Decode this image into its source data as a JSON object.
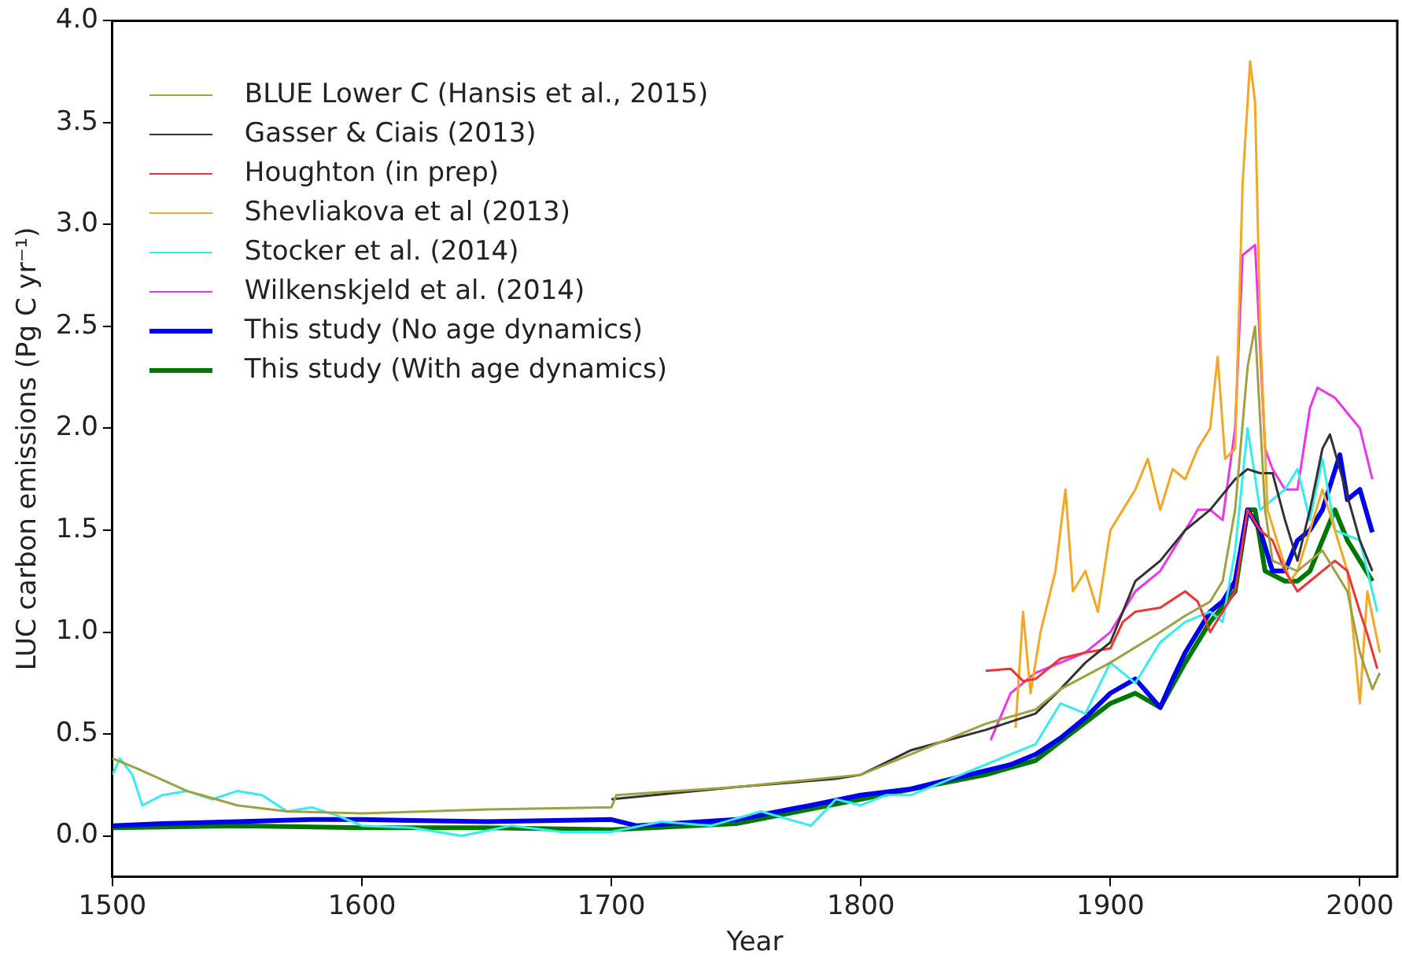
{
  "chart_data": {
    "type": "line",
    "xlabel": "Year",
    "ylabel": "LUC carbon emissions (Pg C yr⁻¹)",
    "xlim": [
      1500,
      2015
    ],
    "xticks": [
      1500,
      1600,
      1700,
      1800,
      1900,
      2000
    ],
    "ylim": [
      -0.2,
      4.0
    ],
    "yticks": [
      {
        "value": 0,
        "label": "0.0"
      },
      0.5,
      {
        "value": 1,
        "label": "1.0"
      },
      1.5,
      {
        "value": 2,
        "label": "2.0"
      },
      2.5,
      {
        "value": 3,
        "label": "3.0"
      },
      3.5,
      {
        "value": 4,
        "label": "4.0"
      }
    ],
    "grid": false,
    "legend": "top left",
    "marker": "none",
    "line_style": "solid",
    "series": [
      {
        "name": "BLUE Lower C (Hansis et al., 2015)",
        "color": "#a0a040",
        "x": [
          1500,
          1510,
          1530,
          1550,
          1570,
          1600,
          1650,
          1700,
          1702,
          1750,
          1800,
          1820,
          1850,
          1870,
          1880,
          1900,
          1920,
          1930,
          1940,
          1945,
          1950,
          1955,
          1958,
          1962,
          1965,
          1975,
          1985,
          1995,
          2000,
          2005,
          2008
        ],
        "values": [
          0.38,
          0.33,
          0.22,
          0.15,
          0.12,
          0.11,
          0.13,
          0.14,
          0.2,
          0.24,
          0.3,
          0.4,
          0.55,
          0.62,
          0.72,
          0.85,
          1.0,
          1.08,
          1.15,
          1.25,
          1.6,
          2.3,
          2.5,
          1.6,
          1.35,
          1.3,
          1.4,
          1.2,
          0.9,
          0.72,
          0.8
        ]
      },
      {
        "name": "Gasser & Ciais (2013)",
        "color": "#333333",
        "x": [
          1700,
          1750,
          1790,
          1800,
          1820,
          1850,
          1870,
          1880,
          1890,
          1900,
          1910,
          1920,
          1930,
          1940,
          1950,
          1955,
          1960,
          1965,
          1970,
          1975,
          1980,
          1985,
          1988,
          1992,
          2000,
          2005
        ],
        "values": [
          0.18,
          0.24,
          0.28,
          0.3,
          0.42,
          0.52,
          0.6,
          0.72,
          0.85,
          0.95,
          1.25,
          1.35,
          1.5,
          1.6,
          1.75,
          1.8,
          1.78,
          1.78,
          1.55,
          1.35,
          1.6,
          1.9,
          1.97,
          1.8,
          1.45,
          1.3
        ]
      },
      {
        "name": "Houghton (in prep)",
        "color": "#ee3333",
        "x": [
          1850,
          1860,
          1865,
          1870,
          1880,
          1890,
          1900,
          1905,
          1910,
          1920,
          1930,
          1935,
          1940,
          1950,
          1955,
          1960,
          1965,
          1970,
          1975,
          1980,
          1990,
          1995,
          2000,
          2003,
          2007
        ],
        "values": [
          0.81,
          0.82,
          0.76,
          0.77,
          0.87,
          0.9,
          0.92,
          1.05,
          1.1,
          1.12,
          1.2,
          1.15,
          1.0,
          1.2,
          1.6,
          1.5,
          1.45,
          1.3,
          1.2,
          1.25,
          1.35,
          1.3,
          1.1,
          0.99,
          0.82
        ]
      },
      {
        "name": "Shevliakova et al (2013)",
        "color": "#f5a623",
        "x": [
          1862,
          1865,
          1868,
          1872,
          1878,
          1882,
          1885,
          1890,
          1895,
          1900,
          1905,
          1910,
          1915,
          1920,
          1925,
          1930,
          1935,
          1940,
          1943,
          1946,
          1950,
          1953,
          1956,
          1958,
          1960,
          1963,
          1968,
          1972,
          1975,
          1980,
          1985,
          1990,
          1995,
          2000,
          2003,
          2008
        ],
        "values": [
          0.53,
          1.1,
          0.7,
          1.0,
          1.3,
          1.7,
          1.2,
          1.3,
          1.1,
          1.5,
          1.6,
          1.7,
          1.85,
          1.6,
          1.8,
          1.75,
          1.9,
          2.0,
          2.35,
          1.85,
          1.9,
          3.2,
          3.8,
          3.6,
          2.5,
          1.6,
          1.4,
          1.25,
          1.3,
          1.5,
          1.7,
          1.5,
          1.3,
          0.65,
          1.2,
          0.9
        ]
      },
      {
        "name": "Stocker et al. (2014)",
        "color": "#33eeee",
        "x": [
          1500,
          1503,
          1508,
          1512,
          1520,
          1530,
          1540,
          1550,
          1560,
          1570,
          1580,
          1590,
          1600,
          1620,
          1640,
          1660,
          1680,
          1700,
          1720,
          1740,
          1760,
          1780,
          1790,
          1800,
          1810,
          1820,
          1840,
          1860,
          1870,
          1880,
          1890,
          1900,
          1910,
          1920,
          1930,
          1940,
          1945,
          1950,
          1955,
          1960,
          1970,
          1975,
          1980,
          1985,
          1990,
          2000,
          2007
        ],
        "values": [
          0.3,
          0.38,
          0.3,
          0.15,
          0.2,
          0.22,
          0.18,
          0.22,
          0.2,
          0.12,
          0.14,
          0.1,
          0.05,
          0.04,
          0.0,
          0.05,
          0.02,
          0.02,
          0.07,
          0.05,
          0.12,
          0.05,
          0.18,
          0.15,
          0.2,
          0.2,
          0.3,
          0.4,
          0.45,
          0.65,
          0.6,
          0.85,
          0.75,
          0.95,
          1.05,
          1.1,
          1.05,
          1.4,
          2.0,
          1.6,
          1.7,
          1.8,
          1.55,
          1.85,
          1.5,
          1.45,
          1.1
        ]
      },
      {
        "name": "Wilkenskjeld et al. (2014)",
        "color": "#ee33ee",
        "x": [
          1852,
          1860,
          1870,
          1880,
          1890,
          1900,
          1910,
          1920,
          1930,
          1935,
          1940,
          1945,
          1950,
          1953,
          1958,
          1962,
          1965,
          1970,
          1975,
          1980,
          1983,
          1990,
          2000,
          2005
        ],
        "values": [
          0.47,
          0.7,
          0.8,
          0.85,
          0.9,
          1.0,
          1.2,
          1.3,
          1.5,
          1.6,
          1.6,
          1.55,
          2.0,
          2.85,
          2.9,
          1.9,
          1.8,
          1.7,
          1.7,
          2.1,
          2.2,
          2.15,
          2.0,
          1.75
        ]
      },
      {
        "name": "This study (No age dynamics)",
        "color": "#0000ee",
        "x": [
          1500,
          1520,
          1550,
          1580,
          1600,
          1650,
          1700,
          1710,
          1750,
          1780,
          1800,
          1820,
          1850,
          1860,
          1870,
          1880,
          1890,
          1900,
          1910,
          1915,
          1920,
          1925,
          1930,
          1940,
          1945,
          1950,
          1955,
          1960,
          1965,
          1970,
          1975,
          1980,
          1985,
          1992,
          1995,
          2000,
          2005
        ],
        "values": [
          0.05,
          0.06,
          0.07,
          0.08,
          0.08,
          0.07,
          0.08,
          0.05,
          0.08,
          0.15,
          0.2,
          0.23,
          0.32,
          0.35,
          0.4,
          0.48,
          0.58,
          0.7,
          0.77,
          0.7,
          0.63,
          0.77,
          0.9,
          1.1,
          1.15,
          1.25,
          1.6,
          1.5,
          1.3,
          1.3,
          1.45,
          1.5,
          1.6,
          1.87,
          1.65,
          1.7,
          1.49
        ]
      },
      {
        "name": "This study (With age dynamics)",
        "color": "#007700",
        "x": [
          1500,
          1550,
          1600,
          1650,
          1700,
          1750,
          1800,
          1850,
          1870,
          1900,
          1910,
          1920,
          1930,
          1940,
          1950,
          1955,
          1958,
          1962,
          1970,
          1975,
          1980,
          1985,
          1990,
          1995,
          2000,
          2005
        ],
        "values": [
          0.04,
          0.05,
          0.04,
          0.04,
          0.03,
          0.06,
          0.18,
          0.3,
          0.37,
          0.65,
          0.7,
          0.63,
          0.85,
          1.05,
          1.2,
          1.6,
          1.6,
          1.3,
          1.25,
          1.25,
          1.3,
          1.45,
          1.6,
          1.45,
          1.35,
          1.25
        ]
      }
    ]
  }
}
